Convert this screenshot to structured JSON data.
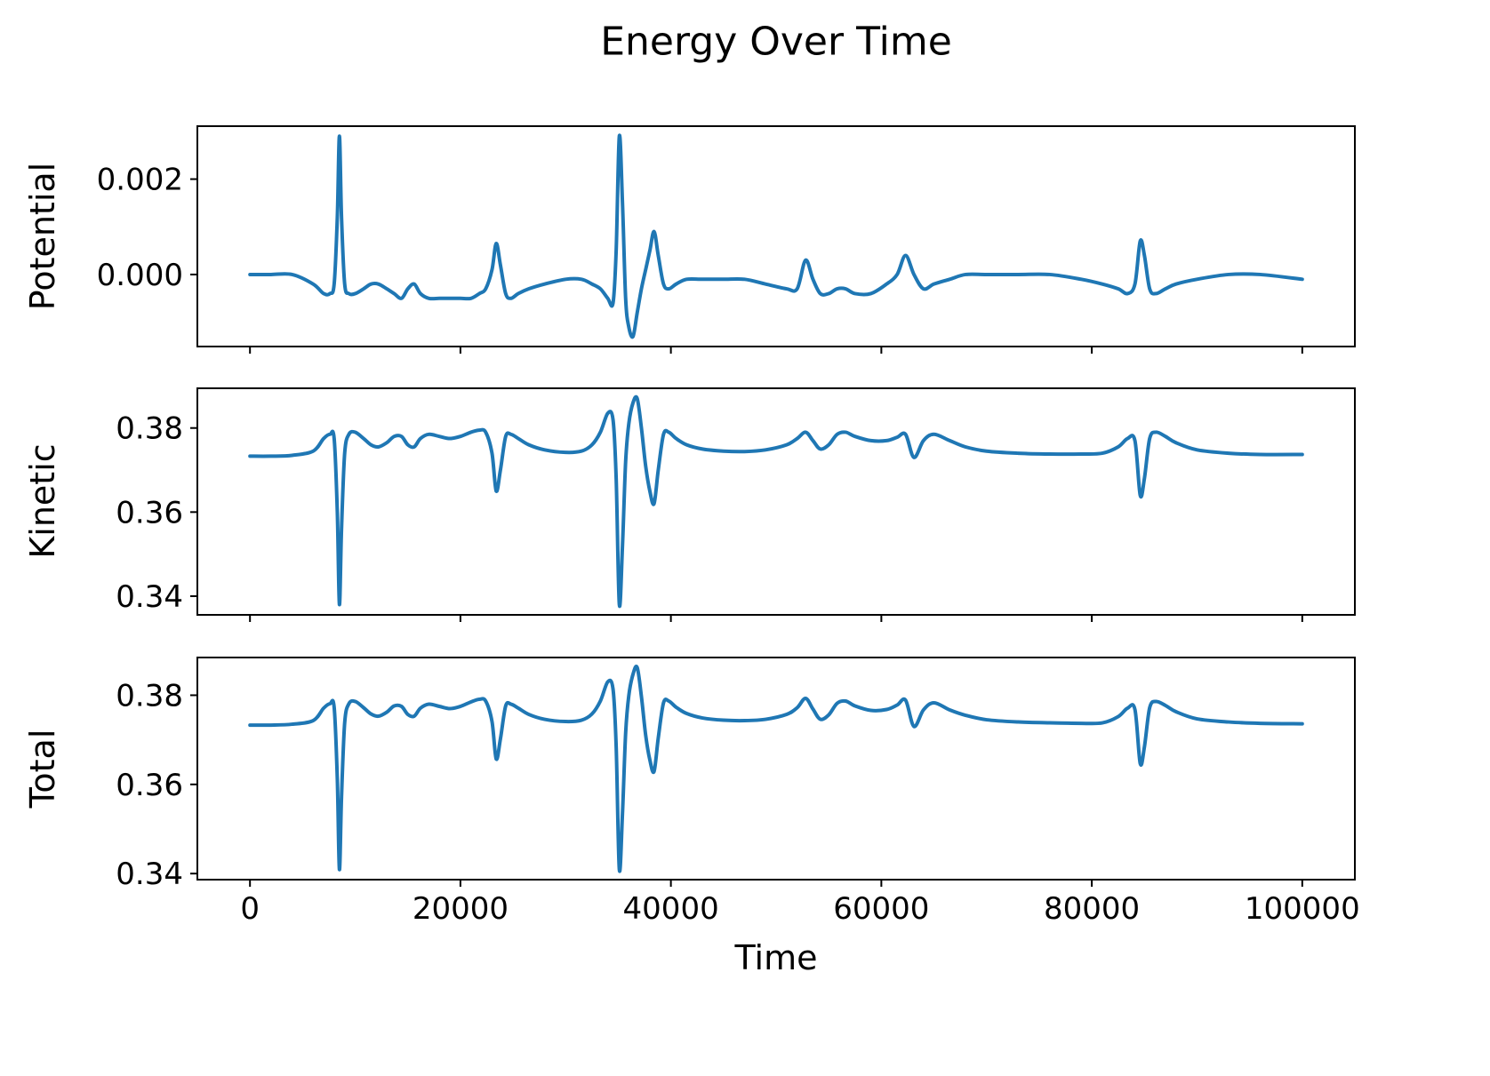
{
  "title": "Energy Over Time",
  "xlabel": "Time",
  "line_color": "#1f77b4",
  "background": "#ffffff",
  "xticks": [
    0,
    20000,
    40000,
    60000,
    80000,
    100000
  ],
  "xtick_labels": [
    "0",
    "20000",
    "40000",
    "60000",
    "80000",
    "100000"
  ],
  "chart_data": [
    {
      "type": "line",
      "name": "Potential",
      "ylabel": "Potential",
      "yticks": [
        0,
        0.002
      ],
      "ytick_labels": [
        "0.000",
        "0.002"
      ],
      "ylim": [
        -0.00151,
        0.00311
      ],
      "xlim": [
        -5000,
        105000
      ],
      "grid": false,
      "x": [
        0,
        2000,
        4000,
        6000,
        7000,
        7600,
        8000,
        8300,
        8500,
        8700,
        9000,
        9400,
        10000,
        10800,
        11500,
        12200,
        13000,
        13700,
        14400,
        15000,
        15600,
        16200,
        17000,
        18000,
        19000,
        20000,
        21000,
        21800,
        22400,
        23000,
        23400,
        23800,
        24300,
        24800,
        25500,
        26500,
        28000,
        30000,
        31500,
        32500,
        33300,
        34000,
        34500,
        34800,
        35100,
        35400,
        35700,
        36000,
        36400,
        36800,
        37200,
        37600,
        38000,
        38400,
        38800,
        39300,
        39800,
        40500,
        41500,
        43000,
        45000,
        47000,
        49000,
        51000,
        52000,
        52800,
        53500,
        54200,
        55000,
        55800,
        56600,
        57500,
        59000,
        60500,
        61500,
        62300,
        63100,
        64000,
        65000,
        66500,
        68000,
        70000,
        73000,
        76000,
        79000,
        81000,
        82500,
        83400,
        84100,
        84600,
        85000,
        85500,
        86100,
        87000,
        88000,
        90000,
        93000,
        96000,
        100000
      ],
      "y": [
        0.0,
        0.0,
        0.0,
        -0.0002,
        -0.0004,
        -0.0004,
        -0.0002,
        0.0012,
        0.0029,
        0.0012,
        -0.0002,
        -0.0004,
        -0.0004,
        -0.0003,
        -0.0002,
        -0.0002,
        -0.0003,
        -0.0004,
        -0.0005,
        -0.0003,
        -0.0002,
        -0.0004,
        -0.0005,
        -0.0005,
        -0.0005,
        -0.0005,
        -0.0005,
        -0.0004,
        -0.0003,
        0.0001,
        0.00065,
        0.0002,
        -0.0004,
        -0.0005,
        -0.0004,
        -0.0003,
        -0.0002,
        -0.0001,
        -0.0001,
        -0.0002,
        -0.0003,
        -0.0005,
        -0.0006,
        0.0005,
        0.0029,
        0.0015,
        -0.0005,
        -0.0011,
        -0.0013,
        -0.0008,
        -0.0003,
        0.0001,
        0.0005,
        0.0009,
        0.0004,
        -0.0002,
        -0.0003,
        -0.0002,
        -0.0001,
        -0.0001,
        -0.0001,
        -0.0001,
        -0.0002,
        -0.0003,
        -0.0003,
        0.0003,
        -0.0001,
        -0.0004,
        -0.0004,
        -0.0003,
        -0.0003,
        -0.0004,
        -0.0004,
        -0.0002,
        0.0,
        0.0004,
        0.0,
        -0.0003,
        -0.0002,
        -0.0001,
        0.0,
        0.0,
        0.0,
        0.0,
        -0.0001,
        -0.0002,
        -0.0003,
        -0.0004,
        -0.0002,
        0.0007,
        0.0004,
        -0.0003,
        -0.0004,
        -0.0003,
        -0.0002,
        -0.0001,
        0.0,
        0.0,
        -0.0001
      ]
    },
    {
      "type": "line",
      "name": "Kinetic",
      "ylabel": "Kinetic",
      "yticks": [
        0.34,
        0.36,
        0.38
      ],
      "ytick_labels": [
        "0.34",
        "0.36",
        "0.38"
      ],
      "ylim": [
        0.33555,
        0.38945
      ],
      "xlim": [
        -5000,
        105000
      ],
      "grid": false,
      "x": [
        0,
        2000,
        4000,
        6000,
        7000,
        7600,
        8000,
        8300,
        8500,
        8700,
        9000,
        9400,
        10000,
        10800,
        11500,
        12200,
        13000,
        13700,
        14400,
        15000,
        15600,
        16200,
        17000,
        18000,
        19000,
        20000,
        21000,
        21800,
        22400,
        23000,
        23400,
        23800,
        24300,
        24800,
        25500,
        26500,
        28000,
        30000,
        31500,
        32500,
        33300,
        34000,
        34500,
        34800,
        35100,
        35400,
        35700,
        36000,
        36400,
        36800,
        37200,
        37600,
        38000,
        38400,
        38800,
        39300,
        39800,
        40500,
        41500,
        43000,
        45000,
        47000,
        49000,
        51000,
        52000,
        52800,
        53500,
        54200,
        55000,
        55800,
        56600,
        57500,
        59000,
        60500,
        61500,
        62300,
        63100,
        64000,
        65000,
        66500,
        68000,
        70000,
        73000,
        76000,
        79000,
        81000,
        82500,
        83400,
        84100,
        84600,
        85000,
        85500,
        86100,
        87000,
        88000,
        90000,
        93000,
        96000,
        100000
      ],
      "y": [
        0.3733,
        0.3733,
        0.3735,
        0.3745,
        0.3775,
        0.3785,
        0.3775,
        0.36,
        0.338,
        0.356,
        0.374,
        0.3785,
        0.379,
        0.3775,
        0.376,
        0.3755,
        0.3765,
        0.378,
        0.378,
        0.376,
        0.3755,
        0.3775,
        0.3785,
        0.378,
        0.3775,
        0.378,
        0.379,
        0.3795,
        0.379,
        0.374,
        0.365,
        0.37,
        0.378,
        0.3785,
        0.3775,
        0.376,
        0.3748,
        0.3742,
        0.3745,
        0.376,
        0.379,
        0.3835,
        0.382,
        0.368,
        0.338,
        0.352,
        0.372,
        0.381,
        0.386,
        0.387,
        0.38,
        0.371,
        0.365,
        0.362,
        0.37,
        0.3785,
        0.379,
        0.3775,
        0.376,
        0.375,
        0.3745,
        0.3744,
        0.3748,
        0.376,
        0.3775,
        0.379,
        0.377,
        0.375,
        0.376,
        0.3785,
        0.379,
        0.378,
        0.377,
        0.377,
        0.3778,
        0.3785,
        0.373,
        0.377,
        0.3785,
        0.377,
        0.3755,
        0.3745,
        0.374,
        0.3738,
        0.3738,
        0.374,
        0.3755,
        0.3775,
        0.377,
        0.364,
        0.368,
        0.3775,
        0.379,
        0.378,
        0.3765,
        0.3748,
        0.374,
        0.3737,
        0.3737
      ]
    },
    {
      "type": "line",
      "name": "Total",
      "ylabel": "Total",
      "yticks": [
        0.34,
        0.36,
        0.38
      ],
      "ytick_labels": [
        "0.34",
        "0.36",
        "0.38"
      ],
      "ylim": [
        0.33864,
        0.38846
      ],
      "xlim": [
        -5000,
        105000
      ],
      "grid": false,
      "x": [
        0,
        2000,
        4000,
        6000,
        7000,
        7600,
        8000,
        8300,
        8500,
        8700,
        9000,
        9400,
        10000,
        10800,
        11500,
        12200,
        13000,
        13700,
        14400,
        15000,
        15600,
        16200,
        17000,
        18000,
        19000,
        20000,
        21000,
        21800,
        22400,
        23000,
        23400,
        23800,
        24300,
        24800,
        25500,
        26500,
        28000,
        30000,
        31500,
        32500,
        33300,
        34000,
        34500,
        34800,
        35100,
        35400,
        35700,
        36000,
        36400,
        36800,
        37200,
        37600,
        38000,
        38400,
        38800,
        39300,
        39800,
        40500,
        41500,
        43000,
        45000,
        47000,
        49000,
        51000,
        52000,
        52800,
        53500,
        54200,
        55000,
        55800,
        56600,
        57500,
        59000,
        60500,
        61500,
        62300,
        63100,
        64000,
        65000,
        66500,
        68000,
        70000,
        73000,
        76000,
        79000,
        81000,
        82500,
        83400,
        84100,
        84600,
        85000,
        85500,
        86100,
        87000,
        88000,
        90000,
        93000,
        96000,
        100000
      ],
      "y": [
        0.3733,
        0.3733,
        0.3735,
        0.3743,
        0.3771,
        0.3781,
        0.3773,
        0.3612,
        0.3409,
        0.3572,
        0.3738,
        0.3781,
        0.3786,
        0.3772,
        0.3758,
        0.3753,
        0.3762,
        0.3776,
        0.3775,
        0.3757,
        0.3753,
        0.3771,
        0.378,
        0.3775,
        0.377,
        0.3775,
        0.3785,
        0.3791,
        0.3787,
        0.3741,
        0.3657,
        0.3702,
        0.3776,
        0.378,
        0.3771,
        0.3757,
        0.3746,
        0.3741,
        0.3744,
        0.3758,
        0.3787,
        0.383,
        0.3814,
        0.3685,
        0.3409,
        0.3535,
        0.3715,
        0.3799,
        0.3847,
        0.3862,
        0.3797,
        0.3711,
        0.3655,
        0.3629,
        0.3704,
        0.3783,
        0.3787,
        0.3773,
        0.3759,
        0.3749,
        0.3744,
        0.3743,
        0.3746,
        0.3757,
        0.3772,
        0.3793,
        0.3769,
        0.3746,
        0.3756,
        0.3782,
        0.3787,
        0.3776,
        0.3766,
        0.3768,
        0.3778,
        0.3789,
        0.373,
        0.3767,
        0.3783,
        0.3767,
        0.3755,
        0.3745,
        0.374,
        0.3738,
        0.3737,
        0.3738,
        0.3752,
        0.3771,
        0.3768,
        0.3647,
        0.3684,
        0.3772,
        0.3786,
        0.3777,
        0.3763,
        0.3747,
        0.374,
        0.3737,
        0.3736
      ]
    }
  ]
}
